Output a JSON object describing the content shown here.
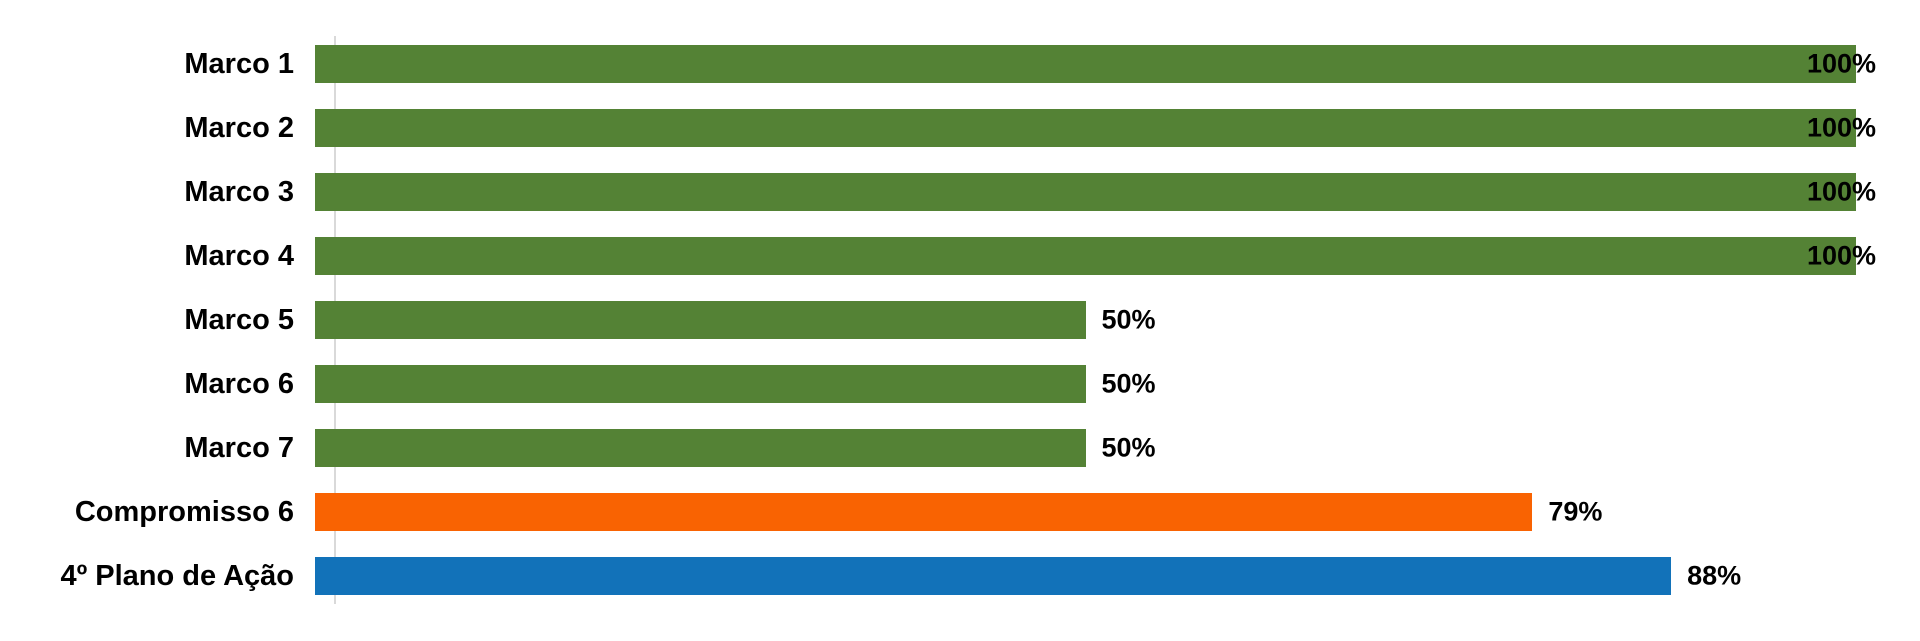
{
  "chart_data": {
    "type": "bar",
    "orientation": "horizontal",
    "title": "",
    "xlabel": "",
    "ylabel": "",
    "xlim": [
      0,
      100
    ],
    "grid": false,
    "legend": "none",
    "categories": [
      "Marco 1",
      "Marco 2",
      "Marco 3",
      "Marco 4",
      "Marco 5",
      "Marco 6",
      "Marco 7",
      "Compromisso 6",
      "4º Plano de Ação"
    ],
    "values": [
      100,
      100,
      100,
      100,
      50,
      50,
      50,
      79,
      88
    ],
    "value_labels": [
      "100%",
      "100%",
      "100%",
      "100%",
      "50%",
      "50%",
      "50%",
      "79%",
      "88%"
    ],
    "bar_colors": [
      "#548235",
      "#548235",
      "#548235",
      "#548235",
      "#548235",
      "#548235",
      "#548235",
      "#F96302",
      "#1272B9"
    ]
  },
  "colors": {
    "green": "#548235",
    "orange": "#F96302",
    "blue": "#1272B9",
    "axis_line": "#D9D9D9",
    "label_text": "#000000",
    "background": "#FFFFFF"
  }
}
